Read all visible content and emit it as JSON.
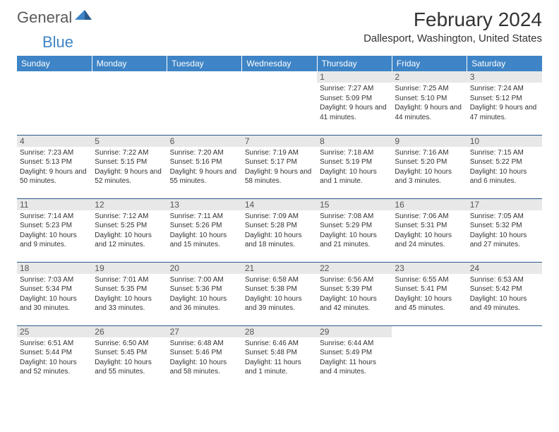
{
  "logo": {
    "general": "General",
    "blue": "Blue"
  },
  "header": {
    "month_title": "February 2024",
    "location": "Dallesport, Washington, United States"
  },
  "colors": {
    "header_bg": "#3e84c6",
    "header_text": "#ffffff",
    "border": "#2a5a8a",
    "day_bg": "#e8e8e8",
    "text": "#333333",
    "logo_gray": "#5a5a5a",
    "logo_blue": "#3e84c6"
  },
  "weekdays": [
    "Sunday",
    "Monday",
    "Tuesday",
    "Wednesday",
    "Thursday",
    "Friday",
    "Saturday"
  ],
  "weeks": [
    [
      {
        "day": "",
        "empty": true
      },
      {
        "day": "",
        "empty": true
      },
      {
        "day": "",
        "empty": true
      },
      {
        "day": "",
        "empty": true
      },
      {
        "day": "1",
        "sunrise": "7:27 AM",
        "sunset": "5:09 PM",
        "daylight": "9 hours and 41 minutes."
      },
      {
        "day": "2",
        "sunrise": "7:25 AM",
        "sunset": "5:10 PM",
        "daylight": "9 hours and 44 minutes."
      },
      {
        "day": "3",
        "sunrise": "7:24 AM",
        "sunset": "5:12 PM",
        "daylight": "9 hours and 47 minutes."
      }
    ],
    [
      {
        "day": "4",
        "sunrise": "7:23 AM",
        "sunset": "5:13 PM",
        "daylight": "9 hours and 50 minutes."
      },
      {
        "day": "5",
        "sunrise": "7:22 AM",
        "sunset": "5:15 PM",
        "daylight": "9 hours and 52 minutes."
      },
      {
        "day": "6",
        "sunrise": "7:20 AM",
        "sunset": "5:16 PM",
        "daylight": "9 hours and 55 minutes."
      },
      {
        "day": "7",
        "sunrise": "7:19 AM",
        "sunset": "5:17 PM",
        "daylight": "9 hours and 58 minutes."
      },
      {
        "day": "8",
        "sunrise": "7:18 AM",
        "sunset": "5:19 PM",
        "daylight": "10 hours and 1 minute."
      },
      {
        "day": "9",
        "sunrise": "7:16 AM",
        "sunset": "5:20 PM",
        "daylight": "10 hours and 3 minutes."
      },
      {
        "day": "10",
        "sunrise": "7:15 AM",
        "sunset": "5:22 PM",
        "daylight": "10 hours and 6 minutes."
      }
    ],
    [
      {
        "day": "11",
        "sunrise": "7:14 AM",
        "sunset": "5:23 PM",
        "daylight": "10 hours and 9 minutes."
      },
      {
        "day": "12",
        "sunrise": "7:12 AM",
        "sunset": "5:25 PM",
        "daylight": "10 hours and 12 minutes."
      },
      {
        "day": "13",
        "sunrise": "7:11 AM",
        "sunset": "5:26 PM",
        "daylight": "10 hours and 15 minutes."
      },
      {
        "day": "14",
        "sunrise": "7:09 AM",
        "sunset": "5:28 PM",
        "daylight": "10 hours and 18 minutes."
      },
      {
        "day": "15",
        "sunrise": "7:08 AM",
        "sunset": "5:29 PM",
        "daylight": "10 hours and 21 minutes."
      },
      {
        "day": "16",
        "sunrise": "7:06 AM",
        "sunset": "5:31 PM",
        "daylight": "10 hours and 24 minutes."
      },
      {
        "day": "17",
        "sunrise": "7:05 AM",
        "sunset": "5:32 PM",
        "daylight": "10 hours and 27 minutes."
      }
    ],
    [
      {
        "day": "18",
        "sunrise": "7:03 AM",
        "sunset": "5:34 PM",
        "daylight": "10 hours and 30 minutes."
      },
      {
        "day": "19",
        "sunrise": "7:01 AM",
        "sunset": "5:35 PM",
        "daylight": "10 hours and 33 minutes."
      },
      {
        "day": "20",
        "sunrise": "7:00 AM",
        "sunset": "5:36 PM",
        "daylight": "10 hours and 36 minutes."
      },
      {
        "day": "21",
        "sunrise": "6:58 AM",
        "sunset": "5:38 PM",
        "daylight": "10 hours and 39 minutes."
      },
      {
        "day": "22",
        "sunrise": "6:56 AM",
        "sunset": "5:39 PM",
        "daylight": "10 hours and 42 minutes."
      },
      {
        "day": "23",
        "sunrise": "6:55 AM",
        "sunset": "5:41 PM",
        "daylight": "10 hours and 45 minutes."
      },
      {
        "day": "24",
        "sunrise": "6:53 AM",
        "sunset": "5:42 PM",
        "daylight": "10 hours and 49 minutes."
      }
    ],
    [
      {
        "day": "25",
        "sunrise": "6:51 AM",
        "sunset": "5:44 PM",
        "daylight": "10 hours and 52 minutes."
      },
      {
        "day": "26",
        "sunrise": "6:50 AM",
        "sunset": "5:45 PM",
        "daylight": "10 hours and 55 minutes."
      },
      {
        "day": "27",
        "sunrise": "6:48 AM",
        "sunset": "5:46 PM",
        "daylight": "10 hours and 58 minutes."
      },
      {
        "day": "28",
        "sunrise": "6:46 AM",
        "sunset": "5:48 PM",
        "daylight": "11 hours and 1 minute."
      },
      {
        "day": "29",
        "sunrise": "6:44 AM",
        "sunset": "5:49 PM",
        "daylight": "11 hours and 4 minutes."
      },
      {
        "day": "",
        "empty": true
      },
      {
        "day": "",
        "empty": true
      }
    ]
  ],
  "labels": {
    "sunrise": "Sunrise:",
    "sunset": "Sunset:",
    "daylight": "Daylight:"
  }
}
